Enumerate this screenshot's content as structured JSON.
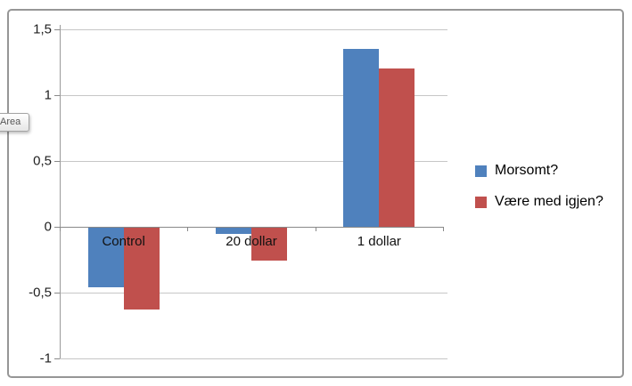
{
  "tooltip": {
    "label": "Area"
  },
  "chart_data": {
    "type": "bar",
    "categories": [
      "Control",
      "20 dollar",
      "1 dollar"
    ],
    "series": [
      {
        "name": "Morsomt?",
        "color": "#4f81bd",
        "values": [
          -0.45,
          -0.05,
          1.35
        ]
      },
      {
        "name": "Være med igjen?",
        "color": "#c0504d",
        "values": [
          -0.62,
          -0.25,
          1.2
        ]
      }
    ],
    "title": "",
    "xlabel": "",
    "ylabel": "",
    "ylim": [
      -1,
      1.5
    ],
    "yticks": [
      {
        "value": 1.5,
        "label": "1,5"
      },
      {
        "value": 1,
        "label": "1"
      },
      {
        "value": 0.5,
        "label": "0,5"
      },
      {
        "value": 0,
        "label": "0"
      },
      {
        "value": -0.5,
        "label": "-0,5"
      },
      {
        "value": -1,
        "label": "-1"
      }
    ],
    "grid": true,
    "legend_position": "right",
    "decimal_separator": ","
  }
}
